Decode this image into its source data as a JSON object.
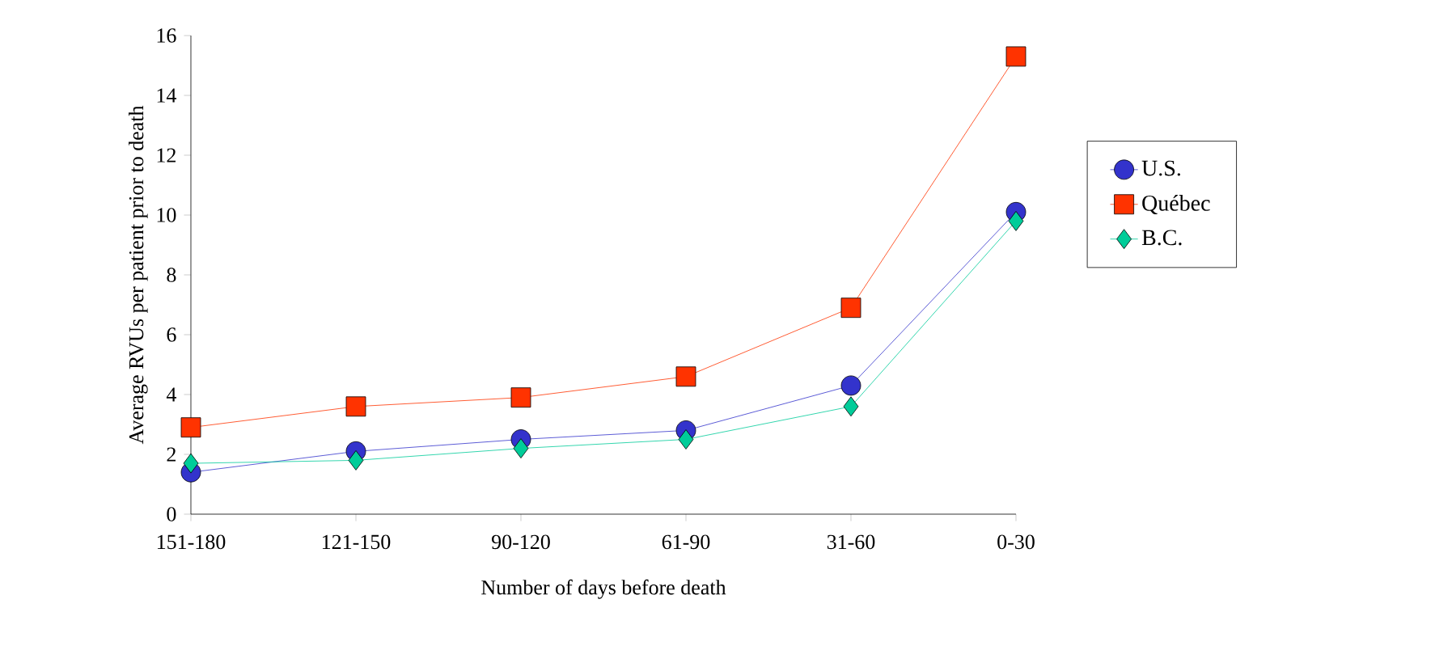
{
  "chart_data": {
    "type": "line",
    "xlabel": "Number of days before death",
    "ylabel": "Average RVUs per patient prior to death",
    "categories": [
      "151-180",
      "121-150",
      "90-120",
      "61-90",
      "31-60",
      "0-30"
    ],
    "ylim": [
      0,
      16
    ],
    "yticks": [
      0,
      2,
      4,
      6,
      8,
      10,
      12,
      14,
      16
    ],
    "legend": "right",
    "grid": false,
    "line_style": "solid",
    "series": [
      {
        "name": "U.S.",
        "color": "#3333cc",
        "marker": "circle",
        "values": [
          1.4,
          2.1,
          2.5,
          2.8,
          4.3,
          10.1
        ]
      },
      {
        "name": "Québec",
        "color": "#ff3300",
        "marker": "square",
        "values": [
          2.9,
          3.6,
          3.9,
          4.6,
          6.9,
          15.3
        ]
      },
      {
        "name": "B.C.",
        "color": "#00cc99",
        "marker": "diamond",
        "values": [
          1.7,
          1.8,
          2.2,
          2.5,
          3.6,
          9.8
        ]
      }
    ]
  }
}
